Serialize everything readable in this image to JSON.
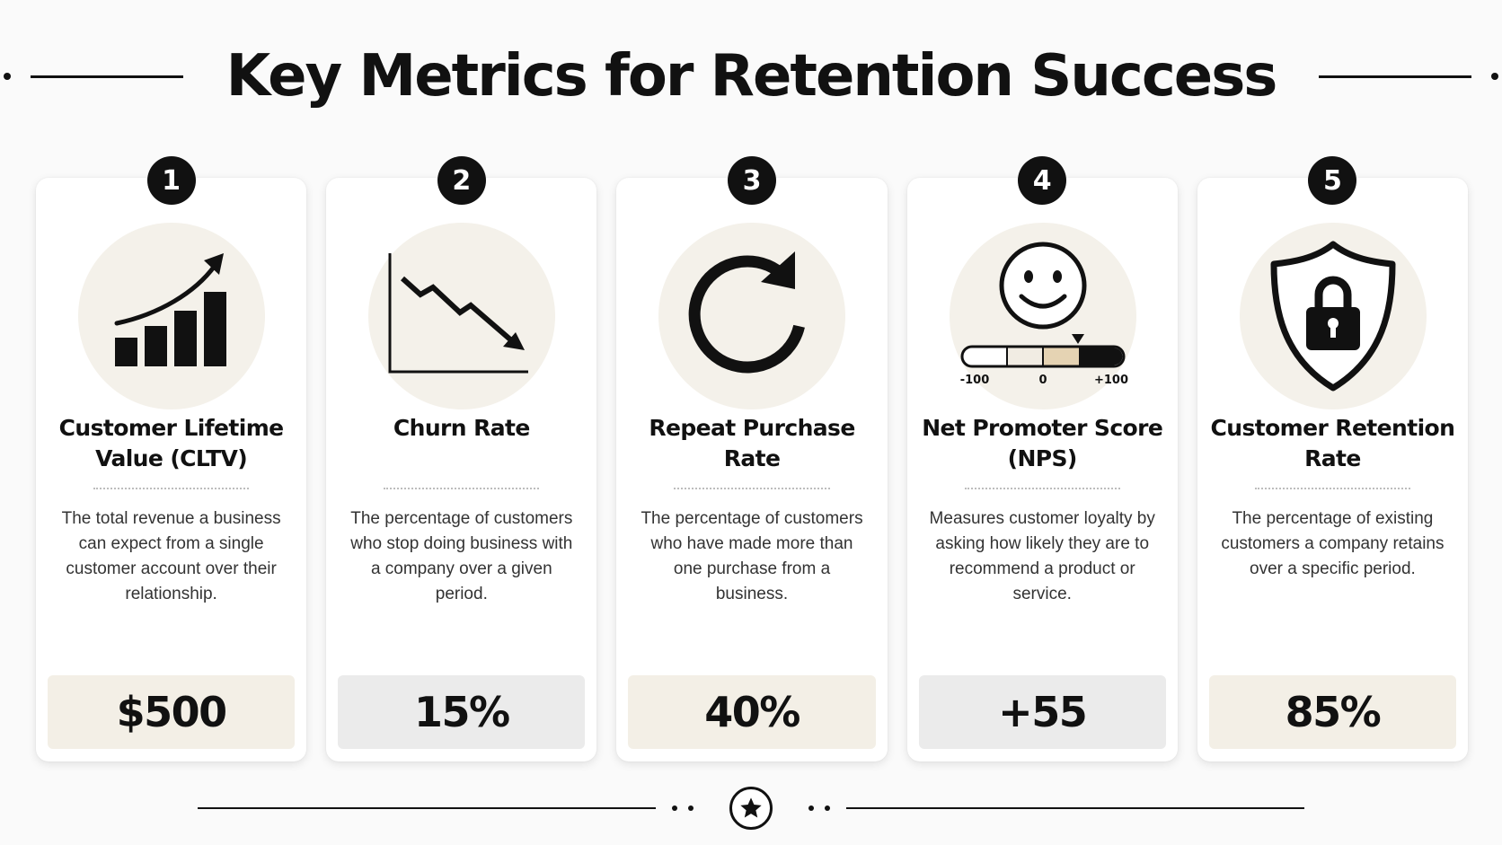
{
  "header": {
    "title": "Key Metrics for Retention Success"
  },
  "cards": [
    {
      "number": "1",
      "icon": "bar-chart-growth-icon",
      "title": "Customer Lifetime Value (CLTV)",
      "description": "The total revenue a business can expect from a single customer account over their relationship.",
      "value": "$500",
      "value_bg": "beige"
    },
    {
      "number": "2",
      "icon": "declining-line-chart-icon",
      "title": "Churn Rate",
      "description": "The percentage of customers who stop doing business with a company over a given period.",
      "value": "15%",
      "value_bg": "gray"
    },
    {
      "number": "3",
      "icon": "refresh-cycle-icon",
      "title": "Repeat Purchase Rate",
      "description": "The percentage of customers who have made more than one purchase from a business.",
      "value": "40%",
      "value_bg": "beige"
    },
    {
      "number": "4",
      "icon": "smiley-score-gauge-icon",
      "title": "Net Promoter Score (NPS)",
      "description": "Measures customer loyalty by asking how likely they are to recommend a product or service.",
      "value": "+55",
      "value_bg": "gray",
      "scale": {
        "min_label": "-100",
        "mid_label": "0",
        "max_label": "+100"
      }
    },
    {
      "number": "5",
      "icon": "shield-lock-icon",
      "title": "Customer Retention Rate",
      "description": "The percentage of existing customers a company retains over a specific period.",
      "value": "85%",
      "value_bg": "beige"
    }
  ],
  "footer": {
    "icon": "star-icon"
  },
  "colors": {
    "background": "#fafafa",
    "ink": "#111111",
    "icon_circle": "#f4f1ea",
    "value_beige": "#f3efe6",
    "value_gray": "#ebebeb",
    "gauge_beige": "#e5d3b3"
  }
}
